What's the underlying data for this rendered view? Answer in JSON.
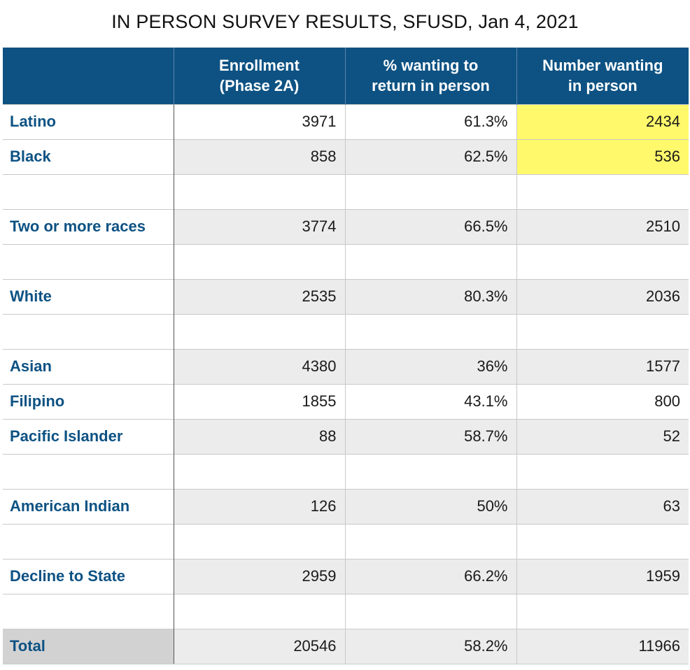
{
  "title": "IN PERSON SURVEY RESULTS, SFUSD, Jan 4, 2021",
  "columns": {
    "enrollment_line1": "Enrollment",
    "enrollment_line2": "(Phase 2A)",
    "pct_line1": "% wanting to",
    "pct_line2": "return in person",
    "number_line1": "Number wanting",
    "number_line2": "in person"
  },
  "highlight_color": "#fff96b",
  "header_color": "#0d5283",
  "rows": [
    {
      "label": "Latino",
      "enrollment": "3971",
      "pct": "61.3%",
      "number": "2434"
    },
    {
      "label": "Black",
      "enrollment": "858",
      "pct": "62.5%",
      "number": "536"
    },
    {
      "label": "Two or more races",
      "enrollment": "3774",
      "pct": "66.5%",
      "number": "2510"
    },
    {
      "label": "White",
      "enrollment": "2535",
      "pct": "80.3%",
      "number": "2036"
    },
    {
      "label": "Asian",
      "enrollment": "4380",
      "pct": "36%",
      "number": "1577"
    },
    {
      "label": "Filipino",
      "enrollment": "1855",
      "pct": "43.1%",
      "number": "800"
    },
    {
      "label": "Pacific Islander",
      "enrollment": "88",
      "pct": "58.7%",
      "number": "52"
    },
    {
      "label": "American Indian",
      "enrollment": "126",
      "pct": "50%",
      "number": "63"
    },
    {
      "label": "Decline to State",
      "enrollment": "2959",
      "pct": "66.2%",
      "number": "1959"
    }
  ],
  "total": {
    "label": "Total",
    "enrollment": "20546",
    "pct": "58.2%",
    "number": "11966"
  }
}
